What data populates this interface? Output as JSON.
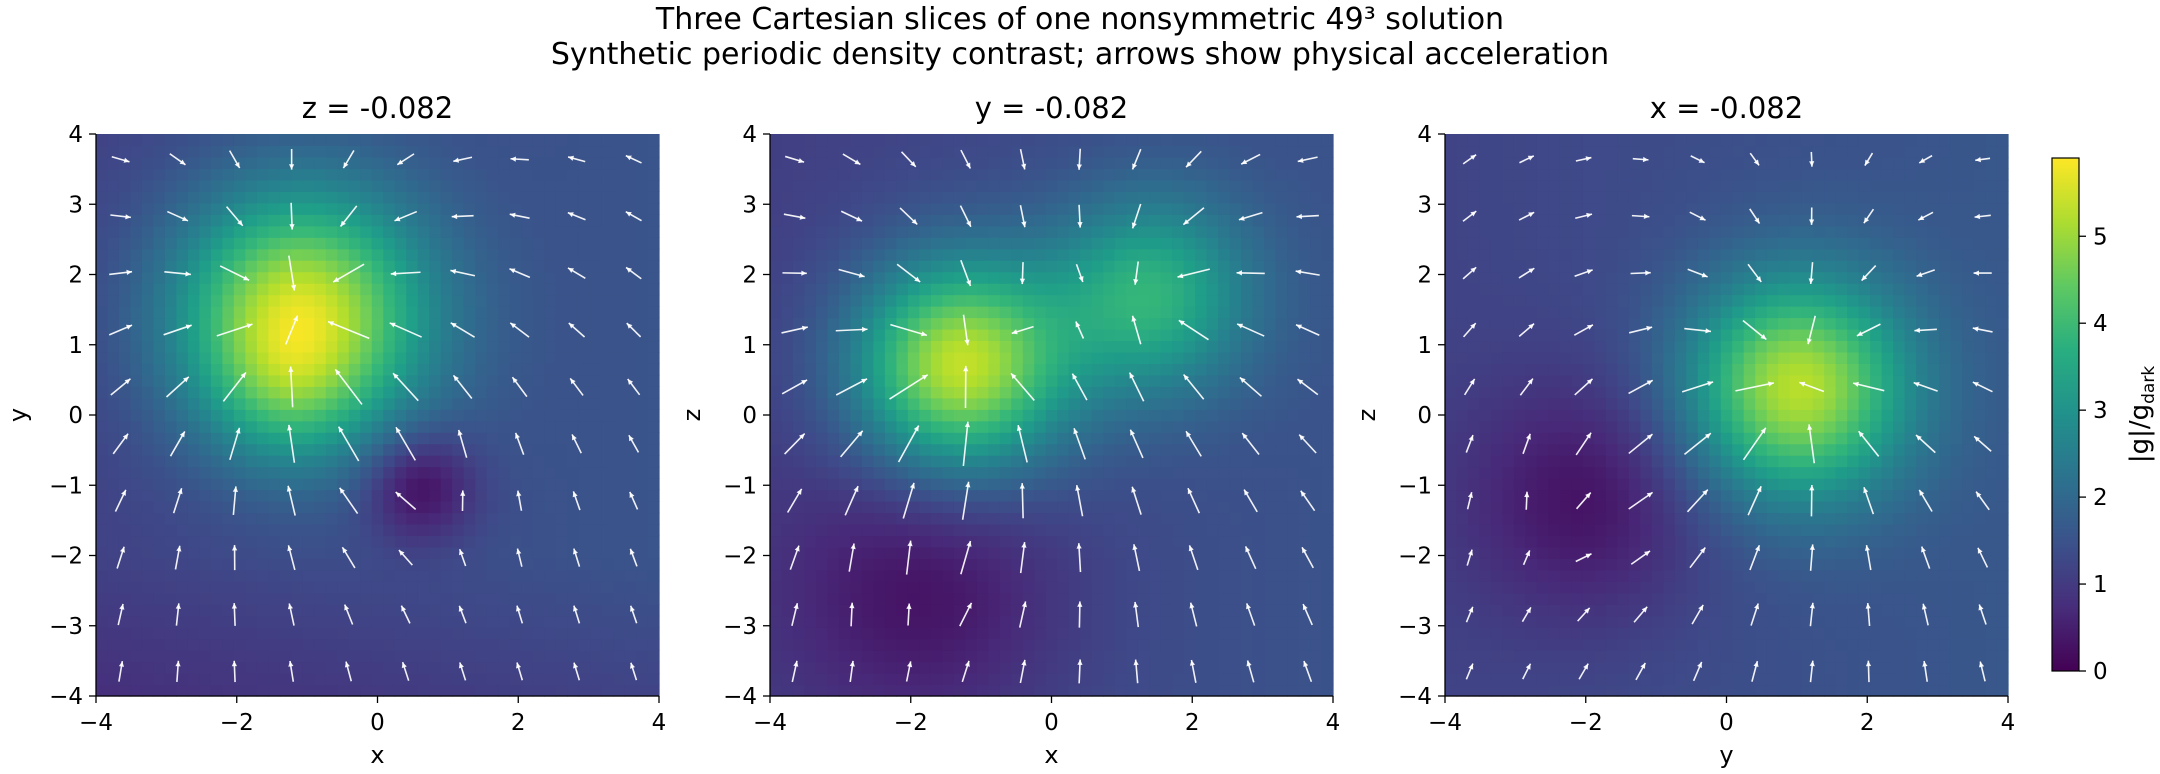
{
  "figure": {
    "title_line1": "Three Cartesian slices of one nonsymmetric 49³ solution",
    "title_line2": "Synthetic periodic density contrast; arrows show physical acceleration"
  },
  "colorbar": {
    "label": "|g|/g_dark",
    "label_main": "|g|/g",
    "label_sub": "dark",
    "ticks": [
      0,
      1,
      2,
      3,
      4,
      5
    ],
    "range": [
      0,
      5.9
    ],
    "colormap": "viridis"
  },
  "chart_data": [
    {
      "type": "heatmap",
      "title": "z = -0.082",
      "xlabel": "x",
      "ylabel": "y",
      "xlim": [
        -4,
        4
      ],
      "ylim": [
        -4,
        4
      ],
      "xticks": [
        -4,
        -2,
        0,
        2,
        4
      ],
      "yticks": [
        -4,
        -3,
        -2,
        -1,
        0,
        1,
        2,
        3,
        4
      ],
      "grid": false,
      "vectors": "quiver arrows, white, physical acceleration",
      "features": [
        {
          "x": -1.1,
          "y": 1.4,
          "value": 5.6
        },
        {
          "x": -1.3,
          "y": 0.3,
          "value": 2.0
        },
        {
          "x": 0.6,
          "y": -1.0,
          "value": 0.1
        }
      ]
    },
    {
      "type": "heatmap",
      "title": "y = -0.082",
      "xlabel": "x",
      "ylabel": "z",
      "xlim": [
        -4,
        4
      ],
      "ylim": [
        -4,
        4
      ],
      "xticks": [
        -4,
        -2,
        0,
        2,
        4
      ],
      "yticks": [
        -4,
        -3,
        -2,
        -1,
        0,
        1,
        2,
        3,
        4
      ],
      "grid": false,
      "vectors": "quiver arrows, white, physical acceleration",
      "features": [
        {
          "x": -1.3,
          "y": 0.7,
          "value": 5.4
        },
        {
          "x": 1.4,
          "y": 1.7,
          "value": 3.8
        },
        {
          "x": -1.8,
          "y": -2.5,
          "value": 0.3
        }
      ]
    },
    {
      "type": "heatmap",
      "title": "x = -0.082",
      "xlabel": "y",
      "ylabel": "z",
      "xlim": [
        -4,
        4
      ],
      "ylim": [
        -4,
        4
      ],
      "xticks": [
        -4,
        -2,
        0,
        2,
        4
      ],
      "yticks": [
        -4,
        -3,
        -2,
        -1,
        0,
        1,
        2,
        3,
        4
      ],
      "grid": false,
      "vectors": "quiver arrows, white, physical acceleration",
      "features": [
        {
          "x": 1.0,
          "y": 0.4,
          "value": 5.3
        },
        {
          "x": -2.0,
          "y": -1.2,
          "value": 0.3
        }
      ]
    }
  ]
}
